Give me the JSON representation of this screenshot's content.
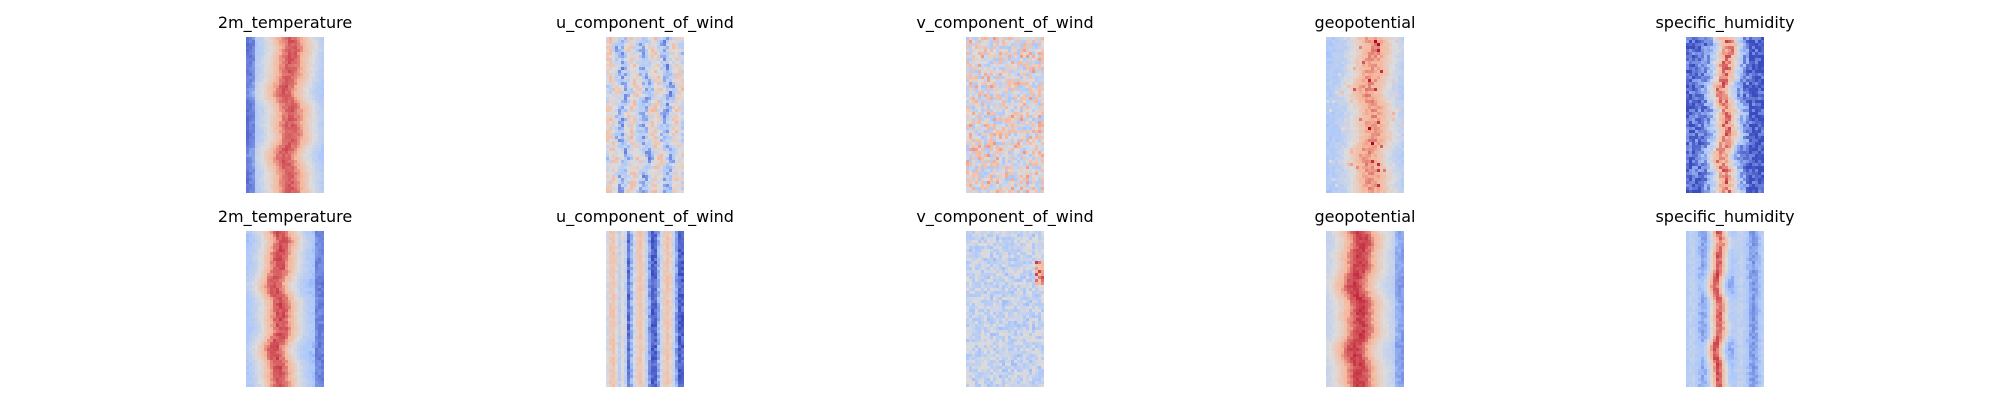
{
  "rows": [
    {
      "panels": [
        {
          "title": "2m_temperature",
          "variable": "2m_temperature",
          "pattern": "warm-core-wide"
        },
        {
          "title": "u_component_of_wind",
          "variable": "u_component_of_wind",
          "pattern": "striped-mixed"
        },
        {
          "title": "v_component_of_wind",
          "variable": "v_component_of_wind",
          "pattern": "noisy-pale"
        },
        {
          "title": "geopotential",
          "variable": "geopotential",
          "pattern": "warm-core-blocky"
        },
        {
          "title": "specific_humidity",
          "variable": "specific_humidity",
          "pattern": "narrow-warm-core"
        }
      ]
    },
    {
      "panels": [
        {
          "title": "2m_temperature",
          "variable": "2m_temperature",
          "pattern": "warm-core-left"
        },
        {
          "title": "u_component_of_wind",
          "variable": "u_component_of_wind",
          "pattern": "striped-vertical"
        },
        {
          "title": "v_component_of_wind",
          "variable": "v_component_of_wind",
          "pattern": "noisy-cool"
        },
        {
          "title": "geopotential",
          "variable": "geopotential",
          "pattern": "warm-core-full"
        },
        {
          "title": "specific_humidity",
          "variable": "specific_humidity",
          "pattern": "striped-cool"
        }
      ]
    }
  ],
  "colormap": "coolwarm",
  "colors": {
    "deep_blue": "#3b4cc0",
    "light_blue": "#aac7fd",
    "neutral": "#dddcdc",
    "light_red": "#f7b89c",
    "deep_red": "#b40426"
  }
}
